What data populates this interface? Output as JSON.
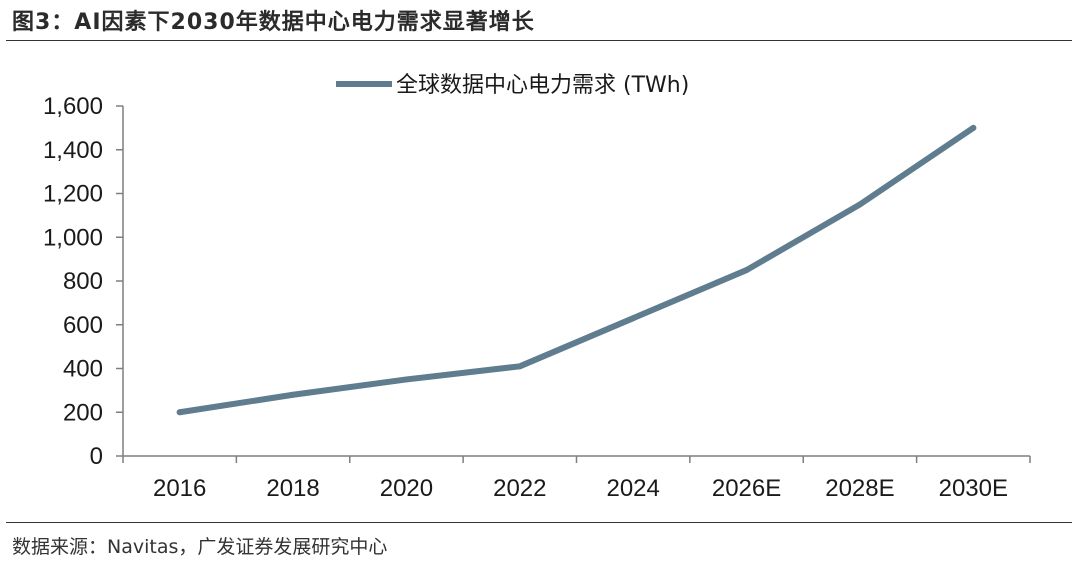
{
  "figure": {
    "title": "图3：AI因素下2030年数据中心电力需求显著增长",
    "source": "数据来源：Navitas，广发证券发展研究中心"
  },
  "colors": {
    "series_line": "#607d8f",
    "axis": "#7f7f7f",
    "rule": "#333333"
  },
  "chart_data": {
    "type": "line",
    "title": "",
    "xlabel": "",
    "ylabel": "",
    "categories": [
      "2016",
      "2018",
      "2020",
      "2022",
      "2024",
      "2026E",
      "2028E",
      "2030E"
    ],
    "series": [
      {
        "name": "全球数据中心电力需求 (TWh)",
        "values": [
          200,
          280,
          350,
          410,
          630,
          850,
          1150,
          1500
        ]
      }
    ],
    "ylim": [
      0,
      1600
    ],
    "yticks": [
      0,
      200,
      400,
      600,
      800,
      1000,
      1200,
      1400,
      1600
    ],
    "ytick_labels": [
      "0",
      "200",
      "400",
      "600",
      "800",
      "1,000",
      "1,200",
      "1,400",
      "1,600"
    ],
    "grid": false,
    "legend_position": "top-center"
  }
}
